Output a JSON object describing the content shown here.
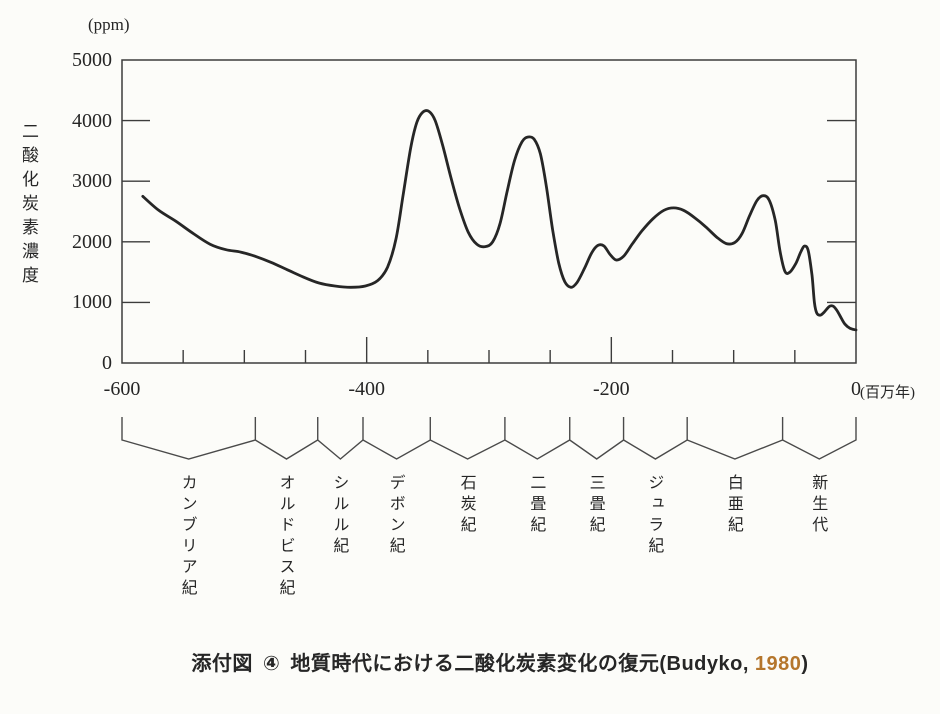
{
  "figure": {
    "y_unit_label": "(ppm)",
    "x_unit_label": "(百万年)",
    "y_axis_title": "二酸化炭素濃度",
    "caption": {
      "prefix": "添付図",
      "number": "④",
      "title": "地質時代における二酸化炭素変化の復元",
      "source_prefix": "(Budyko,",
      "source_year": "1980",
      "source_suffix": ")"
    },
    "ink_color": "#262626",
    "axis_color": "#3c3c3c",
    "bracket_color": "#4a4a4a",
    "year_highlight_color": "#b5762c",
    "paper_color": "#fcfcf9"
  },
  "chart_data": {
    "type": "line",
    "title": "地質時代における二酸化炭素変化の復元 (Budyko, 1980)",
    "xlabel": "百万年",
    "ylabel": "二酸化炭素濃度 (ppm)",
    "xlim": [
      -600,
      0
    ],
    "ylim": [
      0,
      5000
    ],
    "x_tick_labels": [
      -600,
      -400,
      -200,
      0
    ],
    "x_minor_tick_step": 50,
    "y_tick_labels": [
      5000,
      4000,
      3000,
      2000,
      1000,
      0
    ],
    "side_tick_values": [
      4000,
      3000,
      2000,
      1000
    ],
    "grid": false,
    "legend": false,
    "series": [
      {
        "name": "二酸化炭素濃度",
        "points": [
          [
            -583,
            2750
          ],
          [
            -570,
            2520
          ],
          [
            -556,
            2340
          ],
          [
            -542,
            2140
          ],
          [
            -528,
            1960
          ],
          [
            -515,
            1870
          ],
          [
            -503,
            1830
          ],
          [
            -491,
            1760
          ],
          [
            -478,
            1660
          ],
          [
            -465,
            1540
          ],
          [
            -452,
            1420
          ],
          [
            -439,
            1320
          ],
          [
            -426,
            1270
          ],
          [
            -413,
            1250
          ],
          [
            -401,
            1270
          ],
          [
            -391,
            1360
          ],
          [
            -383,
            1580
          ],
          [
            -376,
            2050
          ],
          [
            -370,
            2800
          ],
          [
            -364,
            3550
          ],
          [
            -359,
            3970
          ],
          [
            -354,
            4140
          ],
          [
            -349,
            4150
          ],
          [
            -344,
            4000
          ],
          [
            -338,
            3600
          ],
          [
            -331,
            3050
          ],
          [
            -324,
            2550
          ],
          [
            -317,
            2160
          ],
          [
            -310,
            1960
          ],
          [
            -303,
            1920
          ],
          [
            -297,
            2000
          ],
          [
            -291,
            2300
          ],
          [
            -285,
            2850
          ],
          [
            -279,
            3350
          ],
          [
            -273,
            3650
          ],
          [
            -268,
            3730
          ],
          [
            -263,
            3690
          ],
          [
            -258,
            3450
          ],
          [
            -253,
            2900
          ],
          [
            -248,
            2200
          ],
          [
            -243,
            1650
          ],
          [
            -238,
            1340
          ],
          [
            -233,
            1250
          ],
          [
            -228,
            1330
          ],
          [
            -222,
            1560
          ],
          [
            -216,
            1820
          ],
          [
            -211,
            1940
          ],
          [
            -206,
            1930
          ],
          [
            -201,
            1790
          ],
          [
            -196,
            1700
          ],
          [
            -190,
            1760
          ],
          [
            -183,
            1960
          ],
          [
            -175,
            2180
          ],
          [
            -166,
            2380
          ],
          [
            -157,
            2520
          ],
          [
            -149,
            2560
          ],
          [
            -141,
            2520
          ],
          [
            -132,
            2400
          ],
          [
            -123,
            2250
          ],
          [
            -114,
            2080
          ],
          [
            -106,
            1970
          ],
          [
            -99,
            1990
          ],
          [
            -93,
            2140
          ],
          [
            -87,
            2430
          ],
          [
            -81,
            2680
          ],
          [
            -76,
            2760
          ],
          [
            -71,
            2690
          ],
          [
            -66,
            2350
          ],
          [
            -62,
            1830
          ],
          [
            -58,
            1510
          ],
          [
            -54,
            1500
          ],
          [
            -49,
            1650
          ],
          [
            -45,
            1840
          ],
          [
            -42,
            1930
          ],
          [
            -39,
            1850
          ],
          [
            -36,
            1450
          ],
          [
            -34,
            1000
          ],
          [
            -32,
            820
          ],
          [
            -29,
            790
          ],
          [
            -26,
            840
          ],
          [
            -22,
            930
          ],
          [
            -19,
            940
          ],
          [
            -16,
            880
          ],
          [
            -12,
            740
          ],
          [
            -9,
            640
          ],
          [
            -5,
            575
          ],
          [
            0,
            545
          ]
        ]
      }
    ],
    "geological_periods": [
      {
        "label": "カンブリア紀",
        "start": -600,
        "end": -491
      },
      {
        "label": "オルドビス紀",
        "start": -491,
        "end": -440
      },
      {
        "label": "シルル紀",
        "start": -440,
        "end": -403
      },
      {
        "label": "デボン紀",
        "start": -403,
        "end": -348
      },
      {
        "label": "石炭紀",
        "start": -348,
        "end": -287
      },
      {
        "label": "二畳紀",
        "start": -287,
        "end": -234
      },
      {
        "label": "三畳紀",
        "start": -234,
        "end": -190
      },
      {
        "label": "ジュラ紀",
        "start": -190,
        "end": -138
      },
      {
        "label": "白亜紀",
        "start": -138,
        "end": -60
      },
      {
        "label": "新生代",
        "start": -60,
        "end": 0
      }
    ]
  }
}
